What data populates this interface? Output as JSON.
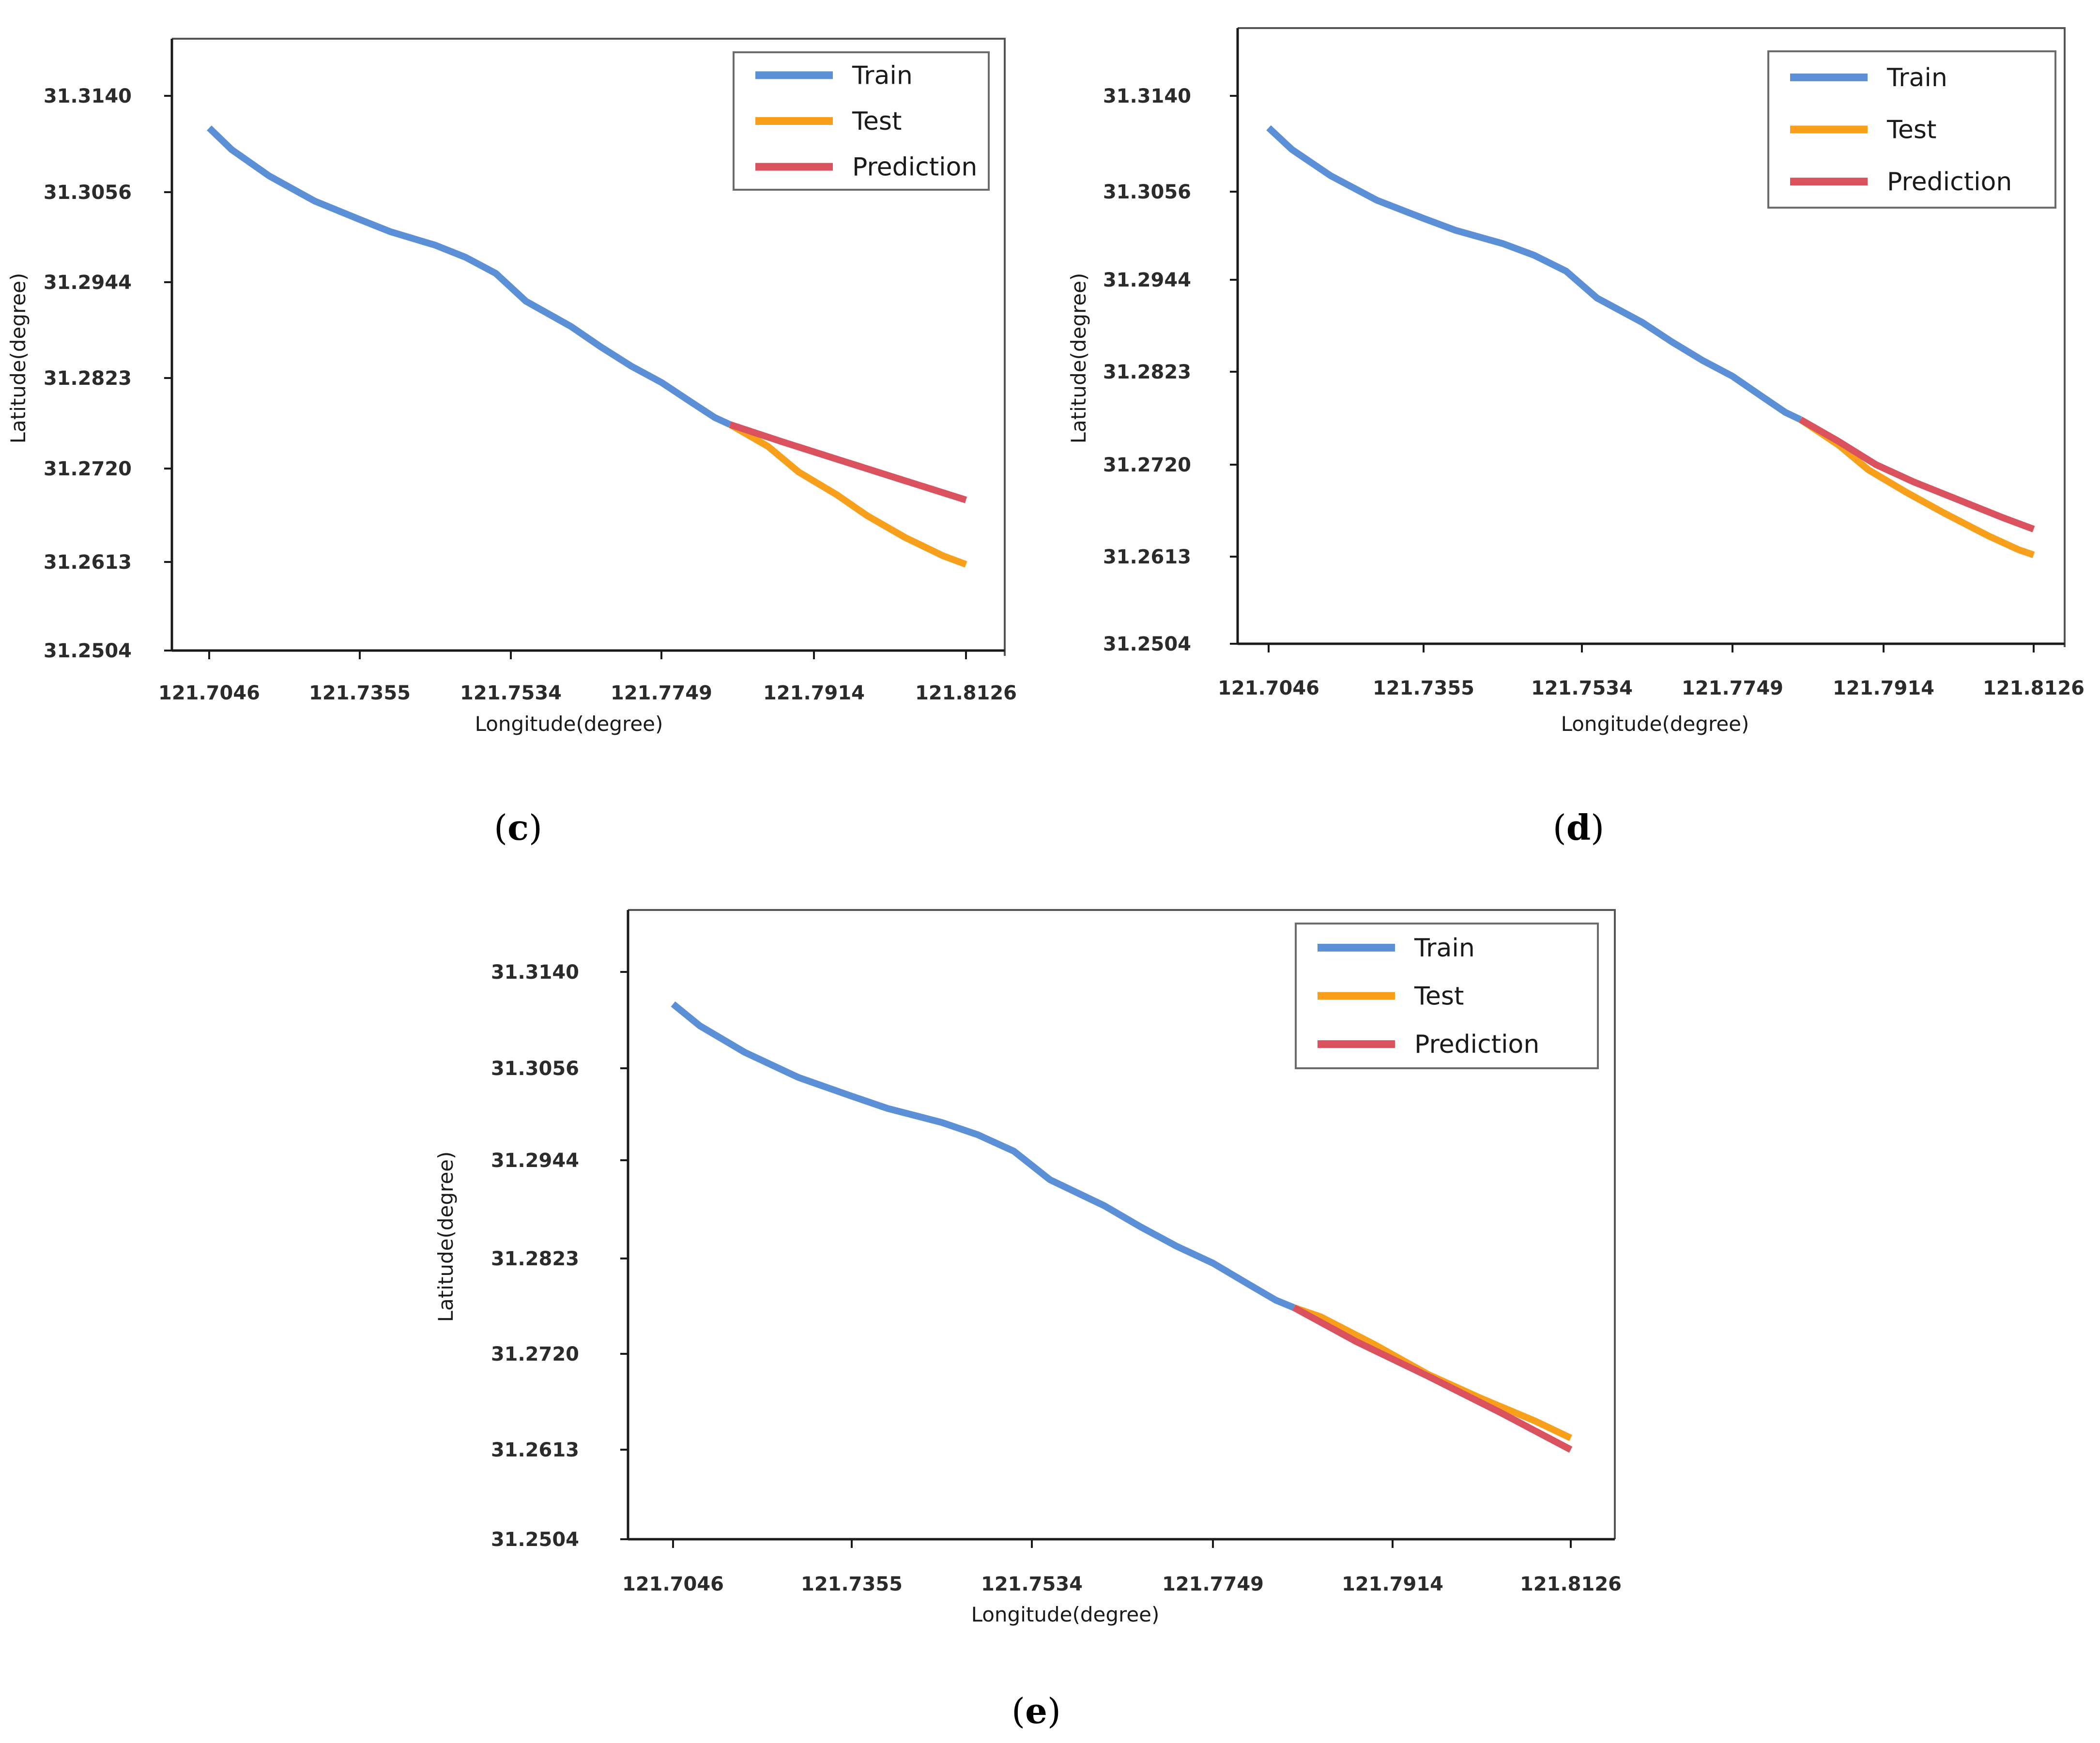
{
  "colors": {
    "train": "#5b8fd6",
    "test": "#f8a01c",
    "prediction": "#d9525e",
    "axis": "#1a1a1a",
    "frame": "#555555"
  },
  "chart_data": [
    {
      "type": "line",
      "panel": "c",
      "caption_letter": "c",
      "xlabel": "Longitude(degree)",
      "ylabel": "Latitude(degree)",
      "x_ticks": [
        "121.7046",
        "121.7355",
        "121.7534",
        "121.7749",
        "121.7914",
        "121.8126"
      ],
      "y_ticks": [
        "31.3140",
        "31.3056",
        "31.2944",
        "31.2823",
        "31.2720",
        "31.2613",
        "31.2504"
      ],
      "legend_position": "top-right",
      "series": [
        {
          "name": "Train",
          "color_key": "train",
          "points": [
            [
              0,
              31.3112
            ],
            [
              0.15,
              31.3093
            ],
            [
              0.4,
              31.307
            ],
            [
              0.7,
              31.3045
            ],
            [
              1.0,
              31.3022
            ],
            [
              1.2,
              31.3007
            ],
            [
              1.5,
              31.299
            ],
            [
              1.7,
              31.2975
            ],
            [
              1.9,
              31.2955
            ],
            [
              2.1,
              31.292
            ],
            [
              2.4,
              31.2888
            ],
            [
              2.6,
              31.2862
            ],
            [
              2.8,
              31.2838
            ],
            [
              3.0,
              31.2818
            ],
            [
              3.2,
              31.2795
            ],
            [
              3.35,
              31.2778
            ],
            [
              3.45,
              31.277
            ]
          ]
        },
        {
          "name": "Test",
          "color_key": "test",
          "points": [
            [
              3.45,
              31.277
            ],
            [
              3.7,
              31.2745
            ],
            [
              3.9,
              31.2716
            ],
            [
              4.15,
              31.269
            ],
            [
              4.35,
              31.2666
            ],
            [
              4.6,
              31.2641
            ],
            [
              4.85,
              31.262
            ],
            [
              5.0,
              31.261
            ]
          ]
        },
        {
          "name": "Prediction",
          "color_key": "prediction",
          "points": [
            [
              3.45,
              31.277
            ],
            [
              3.8,
              31.275
            ],
            [
              4.2,
              31.2728
            ],
            [
              4.6,
              31.2706
            ],
            [
              5.0,
              31.2684
            ]
          ]
        }
      ]
    },
    {
      "type": "line",
      "panel": "d",
      "caption_letter": "d",
      "xlabel": "Longitude(degree)",
      "ylabel": "Latitude(degree)",
      "x_ticks": [
        "121.7046",
        "121.7355",
        "121.7534",
        "121.7749",
        "121.7914",
        "121.8126"
      ],
      "y_ticks": [
        "31.3140",
        "31.3056",
        "31.2944",
        "31.2823",
        "31.2720",
        "31.2613",
        "31.2504"
      ],
      "legend_position": "top-right",
      "series": [
        {
          "name": "Train",
          "color_key": "train",
          "points": [
            [
              0,
              31.3112
            ],
            [
              0.15,
              31.3093
            ],
            [
              0.4,
              31.307
            ],
            [
              0.7,
              31.3045
            ],
            [
              1.0,
              31.3022
            ],
            [
              1.2,
              31.3007
            ],
            [
              1.5,
              31.299
            ],
            [
              1.7,
              31.2975
            ],
            [
              1.9,
              31.2955
            ],
            [
              2.1,
              31.292
            ],
            [
              2.4,
              31.2888
            ],
            [
              2.6,
              31.2862
            ],
            [
              2.8,
              31.2838
            ],
            [
              3.0,
              31.2818
            ],
            [
              3.2,
              31.2795
            ],
            [
              3.35,
              31.2778
            ],
            [
              3.45,
              31.277
            ]
          ]
        },
        {
          "name": "Test",
          "color_key": "test",
          "points": [
            [
              3.45,
              31.277
            ],
            [
              3.7,
              31.2742
            ],
            [
              3.9,
              31.2714
            ],
            [
              4.15,
              31.2688
            ],
            [
              4.4,
              31.2664
            ],
            [
              4.7,
              31.2637
            ],
            [
              4.9,
              31.2621
            ],
            [
              5.0,
              31.2615
            ]
          ]
        },
        {
          "name": "Prediction",
          "color_key": "prediction",
          "points": [
            [
              3.45,
              31.277
            ],
            [
              3.7,
              31.2746
            ],
            [
              3.95,
              31.272
            ],
            [
              4.2,
              31.27
            ],
            [
              4.5,
              31.2679
            ],
            [
              4.8,
              31.2658
            ],
            [
              5.0,
              31.2645
            ]
          ]
        }
      ]
    },
    {
      "type": "line",
      "panel": "e",
      "caption_letter": "e",
      "xlabel": "Longitude(degree)",
      "ylabel": "Latitude(degree)",
      "x_ticks": [
        "121.7046",
        "121.7355",
        "121.7534",
        "121.7749",
        "121.7914",
        "121.8126"
      ],
      "y_ticks": [
        "31.3140",
        "31.3056",
        "31.2944",
        "31.2823",
        "31.2720",
        "31.2613",
        "31.2504"
      ],
      "legend_position": "top-right",
      "series": [
        {
          "name": "Train",
          "color_key": "train",
          "points": [
            [
              0,
              31.3112
            ],
            [
              0.15,
              31.3093
            ],
            [
              0.4,
              31.307
            ],
            [
              0.7,
              31.3045
            ],
            [
              1.0,
              31.3022
            ],
            [
              1.2,
              31.3007
            ],
            [
              1.5,
              31.299
            ],
            [
              1.7,
              31.2975
            ],
            [
              1.9,
              31.2955
            ],
            [
              2.1,
              31.292
            ],
            [
              2.4,
              31.2888
            ],
            [
              2.6,
              31.2862
            ],
            [
              2.8,
              31.2838
            ],
            [
              3.0,
              31.2818
            ],
            [
              3.2,
              31.2795
            ],
            [
              3.35,
              31.2778
            ],
            [
              3.45,
              31.277
            ]
          ]
        },
        {
          "name": "Test",
          "color_key": "test",
          "points": [
            [
              3.45,
              31.277
            ],
            [
              3.6,
              31.276
            ],
            [
              3.9,
              31.273
            ],
            [
              4.2,
              31.2697
            ],
            [
              4.5,
              31.267
            ],
            [
              4.8,
              31.2645
            ],
            [
              5.0,
              31.2626
            ]
          ]
        },
        {
          "name": "Prediction",
          "color_key": "prediction",
          "points": [
            [
              3.45,
              31.277
            ],
            [
              3.8,
              31.2733
            ],
            [
              4.2,
              31.2695
            ],
            [
              4.6,
              31.2655
            ],
            [
              5.0,
              31.2613
            ]
          ]
        }
      ]
    }
  ]
}
